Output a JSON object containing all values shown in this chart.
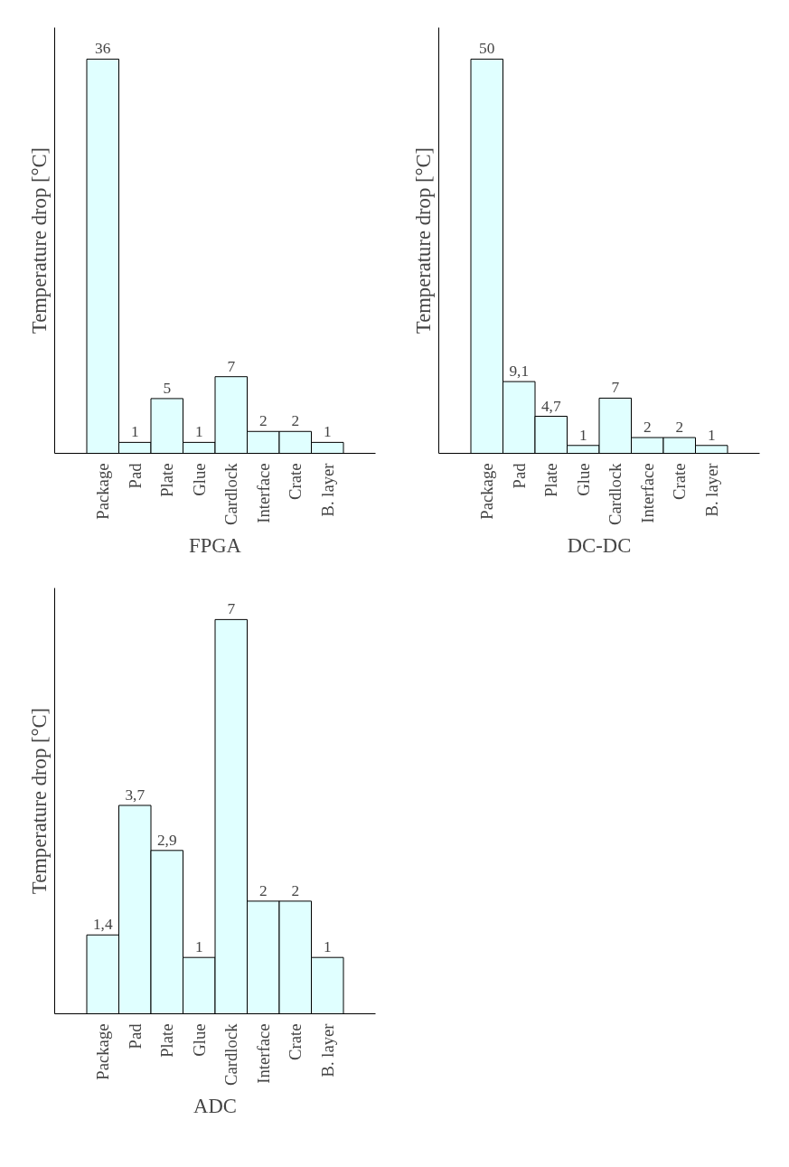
{
  "chart_data": [
    {
      "type": "bar",
      "title": "FPGA",
      "ylabel": "Temperature drop [°C]",
      "categories": [
        "Package",
        "Pad",
        "Plate",
        "Glue",
        "Cardlock",
        "Interface",
        "Crate",
        "B. layer"
      ],
      "values": [
        36,
        1,
        5,
        1,
        7,
        2,
        2,
        1
      ],
      "color": "#e0ffff",
      "value_labels": [
        "36",
        "1",
        "5",
        "1",
        "7",
        "2",
        "2",
        "1"
      ],
      "tick_labels": "x",
      "grid": false
    },
    {
      "type": "bar",
      "title": "DC-DC",
      "ylabel": "Temperature drop [°C]",
      "categories": [
        "Package",
        "Pad",
        "Plate",
        "Glue",
        "Cardlock",
        "Interface",
        "Crate",
        "B. layer"
      ],
      "values": [
        50,
        9.1,
        4.7,
        1,
        7,
        2,
        2,
        1
      ],
      "color": "#e0ffff",
      "value_labels": [
        "50",
        "9,1",
        "4,7",
        "1",
        "7",
        "2",
        "2",
        "1"
      ],
      "tick_labels": "x",
      "grid": false
    },
    {
      "type": "bar",
      "title": "ADC",
      "ylabel": "Temperature drop [°C]",
      "categories": [
        "Package",
        "Pad",
        "Plate",
        "Glue",
        "Cardlock",
        "Interface",
        "Crate",
        "B. layer"
      ],
      "values": [
        1.4,
        3.7,
        2.9,
        1,
        7,
        2,
        2,
        1
      ],
      "color": "#e0ffff",
      "value_labels": [
        "1,4",
        "3,7",
        "2,9",
        "1",
        "7",
        "2",
        "2",
        "1"
      ],
      "tick_labels": "x",
      "grid": false
    }
  ]
}
